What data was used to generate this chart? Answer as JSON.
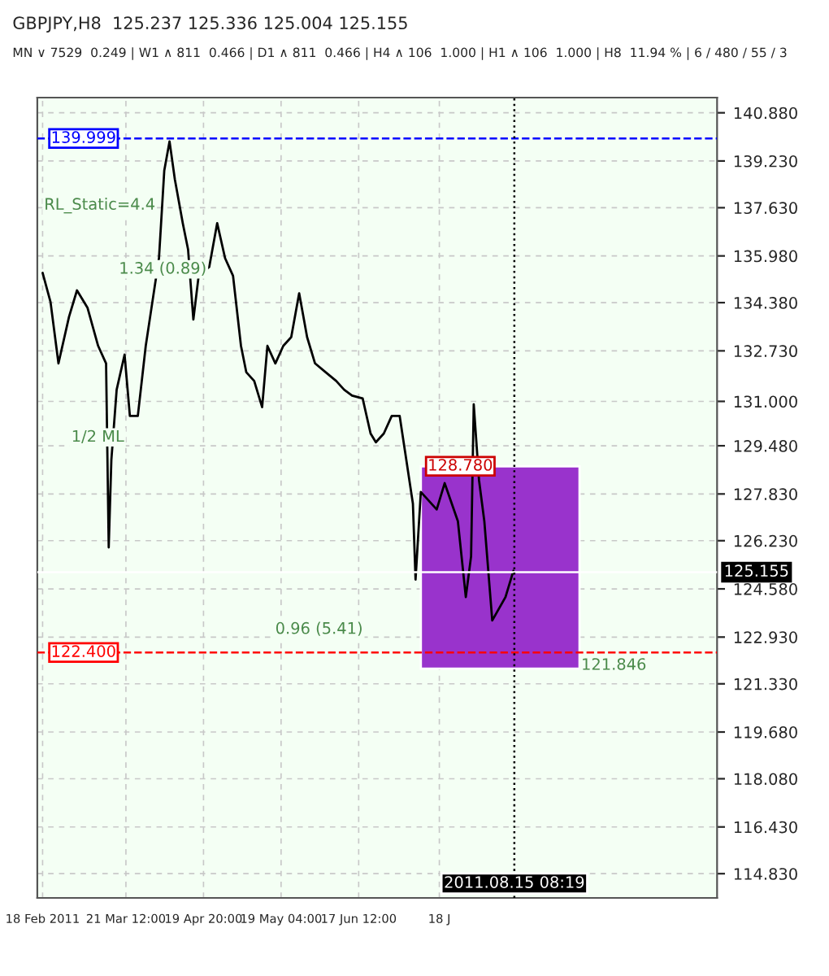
{
  "chart_data": {
    "type": "line",
    "title": "GBPJPY,H8  125.237 125.336 125.004 125.155",
    "subtitle": "MN ∨ 7529  0.249 | W1 ∧ 811  0.466 | D1 ∧ 811  0.466 | H4 ∧ 106  1.000 | H1 ∧ 106  1.000 | H8  11.94 % | 6 / 480 / 55 / 3",
    "x": [
      "2011-02-18",
      "2011-02-21",
      "2011-02-24",
      "2011-02-28",
      "2011-03-03",
      "2011-03-07",
      "2011-03-11",
      "2011-03-14",
      "2011-03-15",
      "2011-03-16",
      "2011-03-18",
      "2011-03-21",
      "2011-03-23",
      "2011-03-26",
      "2011-03-29",
      "2011-03-31",
      "2011-04-03",
      "2011-04-05",
      "2011-04-07",
      "2011-04-09",
      "2011-04-12",
      "2011-04-14",
      "2011-04-16",
      "2011-04-18",
      "2011-04-22",
      "2011-04-25",
      "2011-04-28",
      "2011-05-01",
      "2011-05-04",
      "2011-05-06",
      "2011-05-09",
      "2011-05-12",
      "2011-05-14",
      "2011-05-17",
      "2011-05-20",
      "2011-05-23",
      "2011-05-26",
      "2011-05-29",
      "2011-06-01",
      "2011-06-05",
      "2011-06-09",
      "2011-06-12",
      "2011-06-15",
      "2011-06-19",
      "2011-06-22",
      "2011-06-24",
      "2011-06-27",
      "2011-06-30",
      "2011-07-03",
      "2011-07-05",
      "2011-07-08",
      "2011-07-09",
      "2011-07-11",
      "2011-07-17",
      "2011-07-20",
      "2011-07-25",
      "2011-07-28",
      "2011-07-30",
      "2011-07-31",
      "2011-08-02",
      "2011-08-04",
      "2011-08-07",
      "2011-08-12",
      "2011-08-15"
    ],
    "series": [
      {
        "color": "#000000",
        "values": [
          135.4,
          134.4,
          132.3,
          133.9,
          134.8,
          134.2,
          132.9,
          132.3,
          126.0,
          129.0,
          131.4,
          132.6,
          130.5,
          130.5,
          132.9,
          134.1,
          135.9,
          138.9,
          139.9,
          138.6,
          137.1,
          136.2,
          133.8,
          135.3,
          135.6,
          137.1,
          135.9,
          135.3,
          132.9,
          132.0,
          131.7,
          130.8,
          132.9,
          132.3,
          132.9,
          133.2,
          134.7,
          133.2,
          132.3,
          132.0,
          131.7,
          131.4,
          131.2,
          131.1,
          129.9,
          129.6,
          129.9,
          130.5,
          130.5,
          129.3,
          127.5,
          124.9,
          127.9,
          127.3,
          128.2,
          126.9,
          124.3,
          125.7,
          130.9,
          128.3,
          126.9,
          123.5,
          124.3,
          125.2
        ]
      },
      {
        "type": "bar",
        "color": "#9933cc",
        "x": [
          "2011-08-10"
        ],
        "base": [
          121.846
        ],
        "values": [
          6.93
        ]
      }
    ],
    "xlim": [
      "2011-02-16",
      "2011-10-31"
    ],
    "xticks": [
      {
        "value": "2011-02-18",
        "label": "18 Feb 2011"
      },
      {
        "value": "2011-03-21T12:00",
        "label": "21 Mar 12:00"
      },
      {
        "value": "2011-04-19T20:00",
        "label": "19 Apr 20:00"
      },
      {
        "value": "2011-05-19T04:00",
        "label": "19 May 04:00"
      },
      {
        "value": "2011-06-17T12:00",
        "label": "17 Jun 12:00"
      },
      {
        "value": "2011-07-18",
        "label": "18 J"
      }
    ],
    "ylim": [
      114.0,
      141.4
    ],
    "yticks": [
      {
        "value": 140.88,
        "label": "140.880"
      },
      {
        "value": 139.23,
        "label": "139.230"
      },
      {
        "value": 137.63,
        "label": "137.630"
      },
      {
        "value": 135.98,
        "label": "135.980"
      },
      {
        "value": 134.38,
        "label": "134.380"
      },
      {
        "value": 132.73,
        "label": "132.730"
      },
      {
        "value": 131.0,
        "label": "131.000"
      },
      {
        "value": 129.48,
        "label": "129.480"
      },
      {
        "value": 127.83,
        "label": "127.830"
      },
      {
        "value": 126.23,
        "label": "126.230"
      },
      {
        "value": 124.58,
        "label": "124.580"
      },
      {
        "value": 122.93,
        "label": "122.930"
      },
      {
        "value": 121.33,
        "label": "121.330"
      },
      {
        "value": 119.68,
        "label": "119.680"
      },
      {
        "value": 118.08,
        "label": "118.080"
      },
      {
        "value": 116.43,
        "label": "116.430"
      },
      {
        "value": 114.83,
        "label": "114.830"
      }
    ],
    "ref_lines": [
      {
        "axis": "y",
        "value": 139.999,
        "label": "139.999",
        "color": "#0000ff",
        "line_style": "dashed"
      },
      {
        "axis": "y",
        "value": 122.4,
        "label": "122.400",
        "color": "#ff0000",
        "line_style": "dashed"
      },
      {
        "axis": "y",
        "value": 125.155,
        "label": "125.155",
        "color": "#ffffff",
        "line_style": "solid"
      },
      {
        "axis": "x",
        "value": "2011-08-15T08:19",
        "label": "2011.08.15 08:19",
        "color": "#000000",
        "line_style": "dotted"
      }
    ],
    "annotations": [
      "RL_Static=4.4",
      "1.34 (0.89)",
      "1/2 ML",
      "0.96 (5.41)",
      "121.846",
      {
        "text": "128.780",
        "x": "2011-07-11",
        "y": 128.78
      }
    ],
    "grid": true
  }
}
